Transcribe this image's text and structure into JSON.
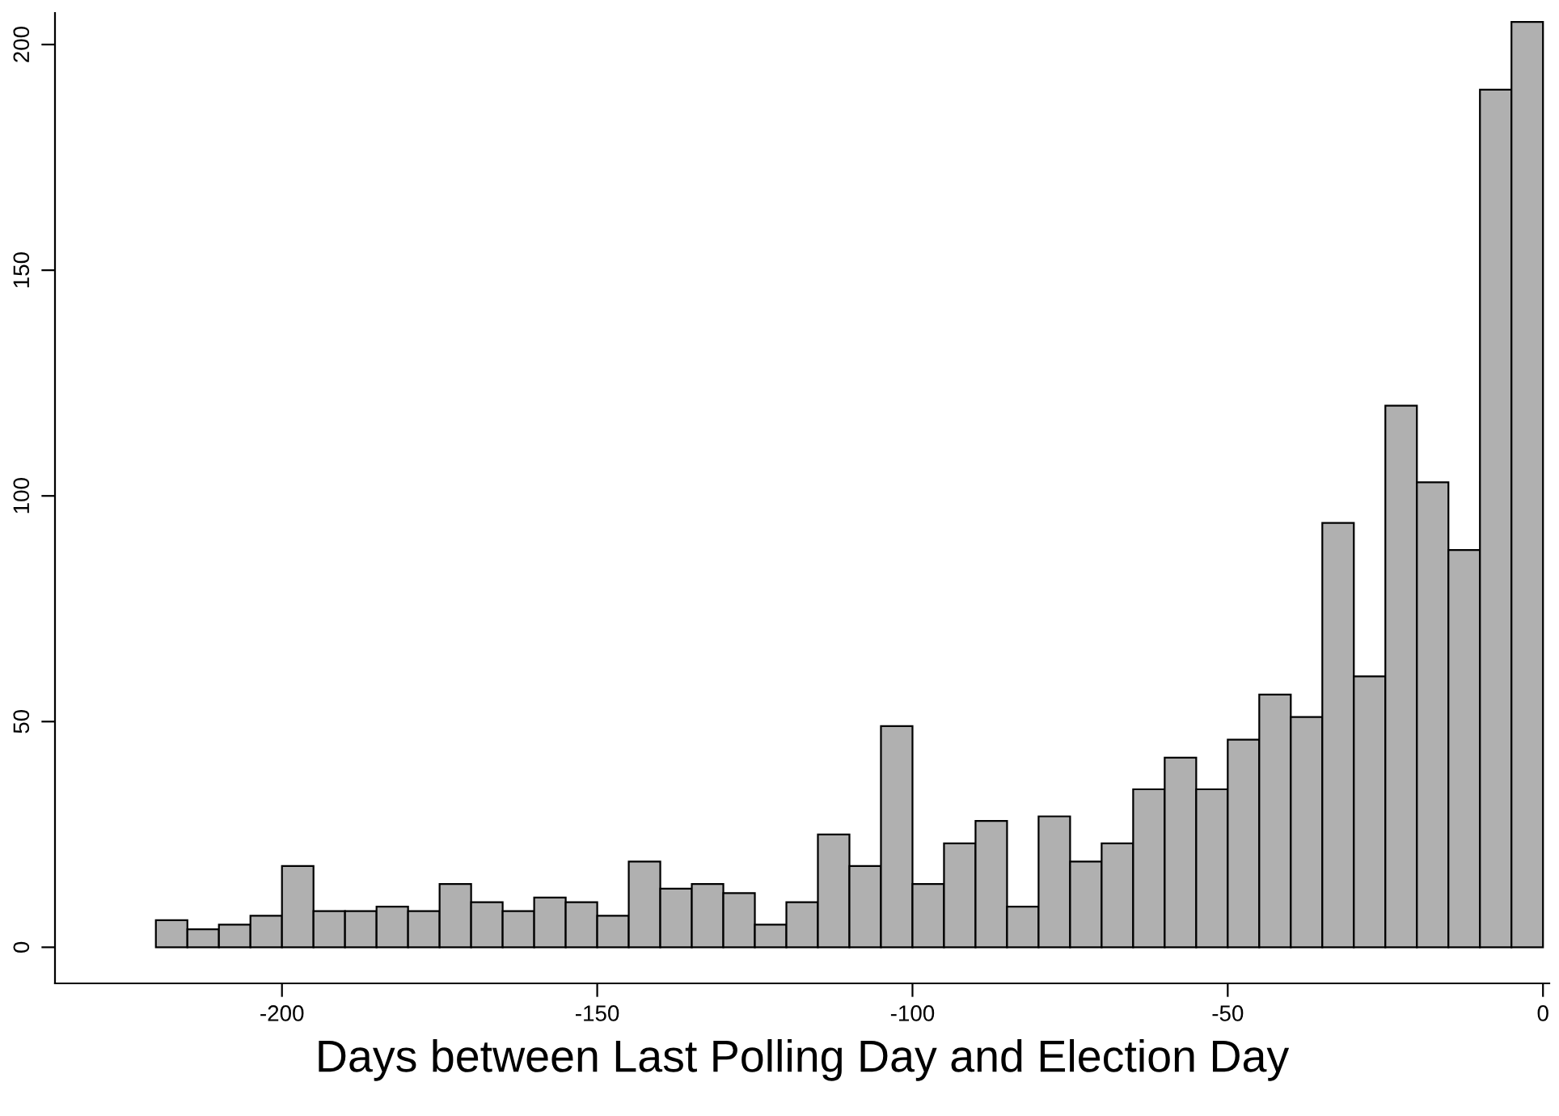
{
  "chart_data": {
    "type": "histogram",
    "xlabel": "Days between Last Polling Day and Election Day",
    "bins": [
      -220,
      -215,
      -210,
      -205,
      -200,
      -195,
      -190,
      -185,
      -180,
      -175,
      -170,
      -165,
      -160,
      -155,
      -150,
      -145,
      -140,
      -135,
      -130,
      -125,
      -120,
      -115,
      -110,
      -105,
      -100,
      -95,
      -90,
      -85,
      -80,
      -75,
      -70,
      -65,
      -60,
      -55,
      -50,
      -45,
      -40,
      -35,
      -30,
      -25,
      -20,
      -15,
      -10,
      -5,
      0
    ],
    "values": [
      6,
      4,
      5,
      7,
      18,
      8,
      8,
      9,
      8,
      14,
      10,
      8,
      11,
      10,
      7,
      19,
      13,
      14,
      12,
      5,
      10,
      25,
      18,
      49,
      14,
      23,
      28,
      9,
      29,
      19,
      23,
      35,
      42,
      35,
      46,
      56,
      51,
      94,
      60,
      120,
      103,
      88,
      190,
      205
    ],
    "color": "#b0b0b0",
    "xlim": [
      -236,
      1
    ],
    "ylim": [
      -8,
      207
    ],
    "xticks": [
      -200,
      -150,
      -100,
      -50,
      0
    ],
    "yticks": [
      0,
      50,
      100,
      150,
      200
    ],
    "grid": false,
    "legend": false
  }
}
